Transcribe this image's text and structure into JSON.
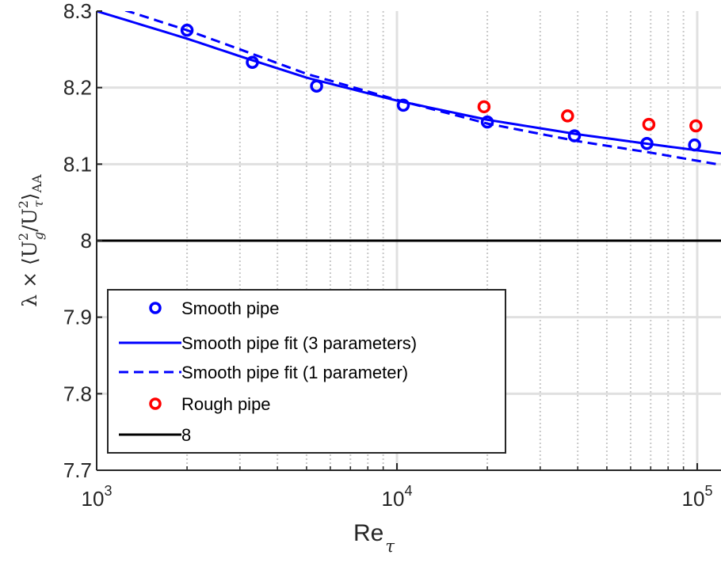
{
  "chart_data": {
    "type": "scatter",
    "title": "",
    "xlabel": "Re",
    "xlabel_subscript": "τ",
    "ylabel": "λ × ⟨U",
    "ylabel_g": "g",
    "ylabel_mid": "/U",
    "ylabel_tau": "τ",
    "ylabel_end": "⟩",
    "ylabel_sub": "AA",
    "ylabel_sup": "2",
    "x_scale": "log",
    "xlim": [
      1000,
      120000
    ],
    "ylim": [
      7.7,
      8.3
    ],
    "grid": true,
    "legend_position": "bottom-left",
    "x_tick_labels": [
      {
        "value": 1000,
        "base": "10",
        "exp": "3"
      },
      {
        "value": 10000,
        "base": "10",
        "exp": "4"
      },
      {
        "value": 100000,
        "base": "10",
        "exp": "5"
      }
    ],
    "y_ticks": [
      7.7,
      7.8,
      7.9,
      8.0,
      8.1,
      8.2,
      8.3
    ],
    "y_tick_labels": [
      "7.7",
      "7.8",
      "7.9",
      "8",
      "8.1",
      "8.2",
      "8.3"
    ],
    "series": [
      {
        "name": "Smooth pipe",
        "kind": "markers",
        "color": "#0000ff",
        "points": [
          [
            2000,
            8.275
          ],
          [
            3300,
            8.233
          ],
          [
            5400,
            8.202
          ],
          [
            10500,
            8.177
          ],
          [
            20000,
            8.155
          ],
          [
            39000,
            8.137
          ],
          [
            68000,
            8.127
          ],
          [
            98000,
            8.125
          ]
        ]
      },
      {
        "name": "Smooth pipe fit (3 parameters)",
        "kind": "line",
        "dash": "solid",
        "color": "#0000ff",
        "points": [
          [
            1000,
            8.3
          ],
          [
            2000,
            8.264
          ],
          [
            3000,
            8.241
          ],
          [
            5000,
            8.213
          ],
          [
            10000,
            8.183
          ],
          [
            20000,
            8.158
          ],
          [
            40000,
            8.139
          ],
          [
            70000,
            8.126
          ],
          [
            120000,
            8.114
          ]
        ]
      },
      {
        "name": "Smooth pipe fit (1 parameter)",
        "kind": "line",
        "dash": "dashed",
        "color": "#0000ff",
        "points": [
          [
            1000,
            8.313
          ],
          [
            2000,
            8.275
          ],
          [
            3000,
            8.25
          ],
          [
            5000,
            8.218
          ],
          [
            10000,
            8.184
          ],
          [
            20000,
            8.153
          ],
          [
            40000,
            8.13
          ],
          [
            70000,
            8.115
          ],
          [
            120000,
            8.099
          ]
        ]
      },
      {
        "name": "Rough pipe",
        "kind": "markers",
        "color": "#ff0000",
        "points": [
          [
            19500,
            8.175
          ],
          [
            37000,
            8.163
          ],
          [
            69000,
            8.152
          ],
          [
            99000,
            8.15
          ]
        ]
      },
      {
        "name": "8",
        "kind": "hline",
        "color": "#000000",
        "y": 8.0
      }
    ]
  }
}
